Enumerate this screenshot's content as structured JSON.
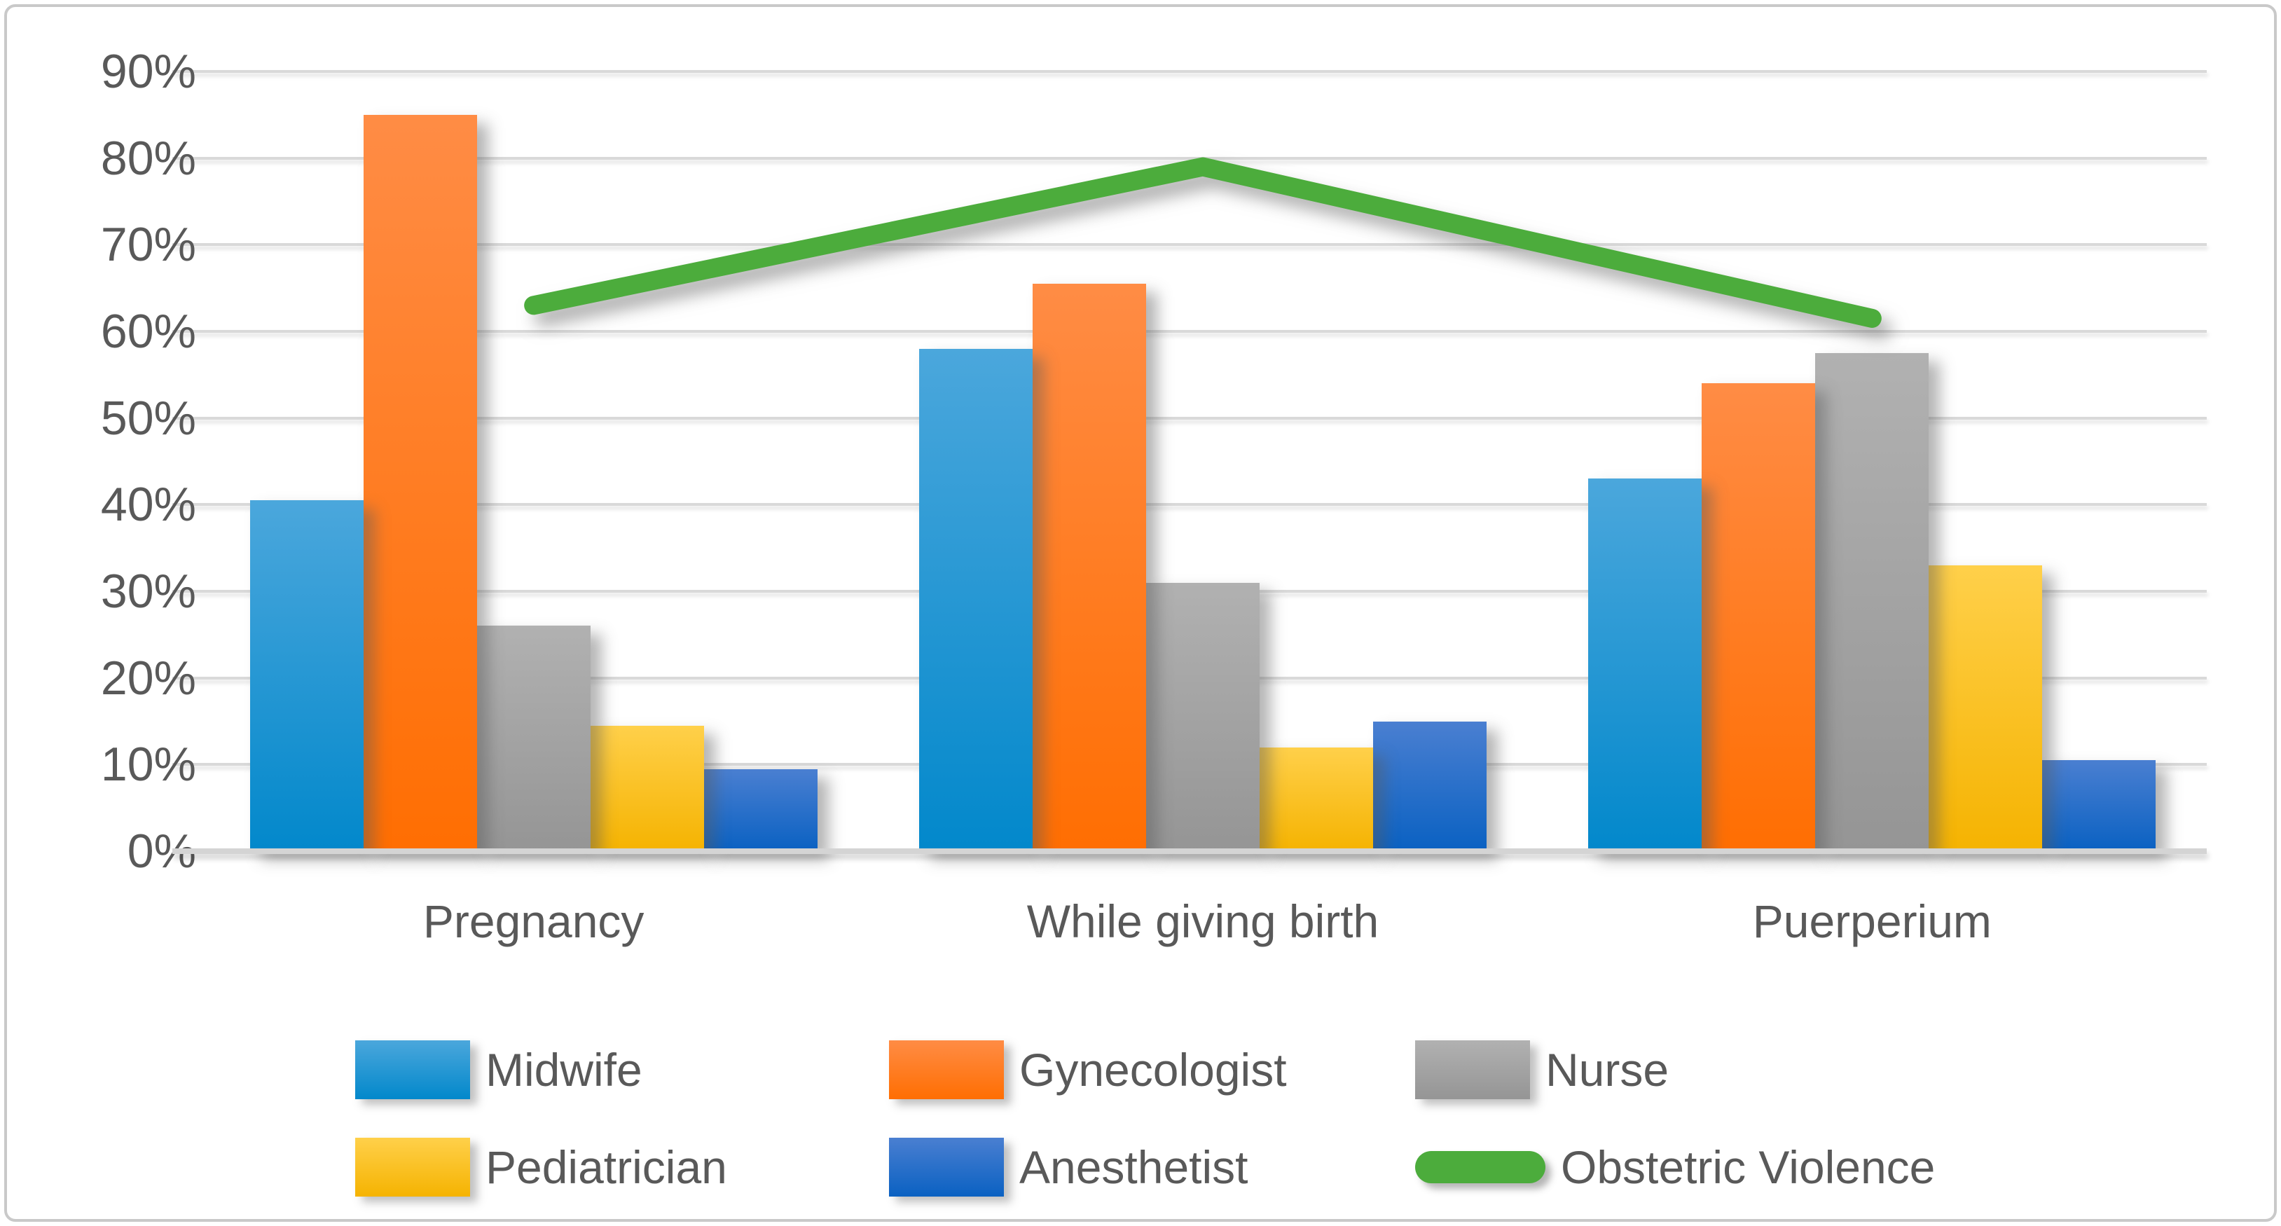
{
  "chart_data": {
    "type": "bar",
    "subtype": "grouped-bars-with-line-overlay",
    "title": "",
    "xlabel": "",
    "ylabel": "",
    "categories": [
      "Pregnancy",
      "While giving birth",
      "Puerperium"
    ],
    "series": [
      {
        "name": "Midwife",
        "type": "bar",
        "values": [
          40.5,
          58,
          43
        ],
        "color_top": "#4BA7DC",
        "color_bottom": "#0288CB"
      },
      {
        "name": "Gynecologist",
        "type": "bar",
        "values": [
          85,
          65.5,
          54
        ],
        "color_top": "#FF8C45",
        "color_bottom": "#FF6E02"
      },
      {
        "name": "Nurse",
        "type": "bar",
        "values": [
          26,
          31,
          57.5
        ],
        "color_top": "#B1B1B1",
        "color_bottom": "#959595"
      },
      {
        "name": "Pediatrician",
        "type": "bar",
        "values": [
          14.5,
          12,
          33
        ],
        "color_top": "#FFD04A",
        "color_bottom": "#F5B301"
      },
      {
        "name": "Anesthetist",
        "type": "bar",
        "values": [
          9.5,
          15,
          10.5
        ],
        "color_top": "#4A7FD1",
        "color_bottom": "#0A61C2"
      },
      {
        "name": "Obstetric Violence",
        "type": "line",
        "values": [
          63,
          79,
          61.5
        ],
        "color": "#4CAC3C"
      }
    ],
    "y_axis": {
      "min": 0,
      "max": 90,
      "step": 10,
      "unit": "%",
      "tick_labels": [
        "90%",
        "80%",
        "70%",
        "60%",
        "50%",
        "40%",
        "30%",
        "20%",
        "10%",
        "0%"
      ]
    },
    "grid": true,
    "legend_position": "bottom",
    "colors": {
      "grid": "#D9D9D9",
      "axis_line": "#D4D4D4",
      "text": "#595959",
      "frame_border": "#C9C9C9",
      "background": "#FFFFFF"
    }
  }
}
